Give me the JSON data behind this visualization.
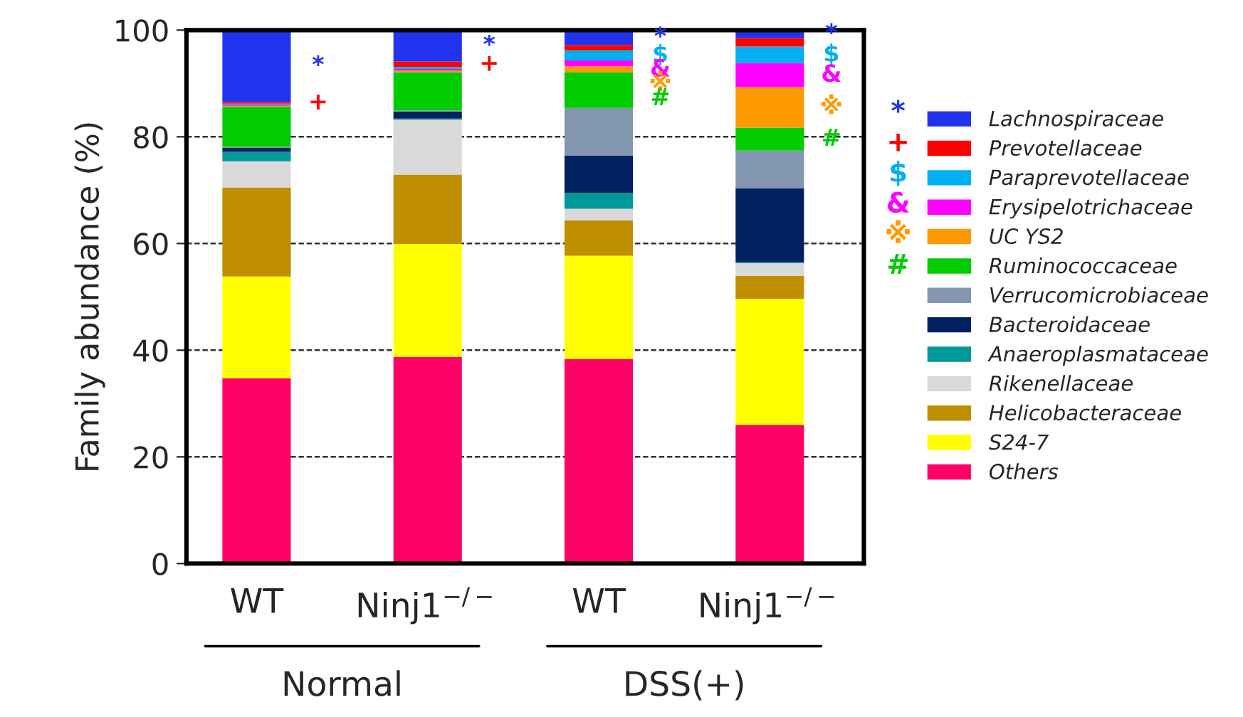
{
  "chart_data": {
    "type": "bar",
    "stacked": true,
    "ylabel": "Family abundance (%)",
    "categories": [
      "WT",
      "Ninj1$^{−/−}$",
      "WT",
      "Ninj1$^{−/−}$"
    ],
    "series": [
      {
        "name": "Others",
        "color": "#ff0066",
        "values": [
          34.7,
          38.7,
          38.3,
          26.0
        ]
      },
      {
        "name": "S24-7",
        "color": "#ffff00",
        "values": [
          19.1,
          21.2,
          19.4,
          23.6
        ]
      },
      {
        "name": "Helicobacteraceae",
        "color": "#bf8f00",
        "values": [
          16.7,
          13.0,
          6.6,
          4.3
        ]
      },
      {
        "name": "Rikenellaceae",
        "color": "#d9d9d9",
        "values": [
          4.9,
          10.3,
          2.2,
          2.4
        ]
      },
      {
        "name": "Anaeroplasmataceae",
        "color": "#009999",
        "values": [
          1.8,
          0.2,
          3.0,
          0.2
        ]
      },
      {
        "name": "Bacteroidaceae",
        "color": "#002060",
        "values": [
          0.7,
          1.3,
          7.0,
          13.8
        ]
      },
      {
        "name": "Verrucomicrobiaceae",
        "color": "#8497b0",
        "values": [
          0.2,
          0.2,
          8.9,
          7.1
        ]
      },
      {
        "name": "Ruminococcaceae",
        "color": "#00cc00",
        "values": [
          7.5,
          7.2,
          6.7,
          4.3
        ]
      },
      {
        "name": "UC YS2",
        "color": "#ff9900",
        "values": [
          0.2,
          0.3,
          1.1,
          7.6
        ]
      },
      {
        "name": "Erysipelotrichaceae",
        "color": "#ff00ff",
        "values": [
          0.2,
          0.3,
          1.1,
          4.5
        ]
      },
      {
        "name": "Paraprevotellaceae",
        "color": "#00b0f0",
        "values": [
          0.2,
          0.4,
          1.9,
          3.1
        ]
      },
      {
        "name": "Prevotellaceae",
        "color": "#ff0000",
        "values": [
          0.3,
          1.0,
          1.0,
          1.6
        ]
      },
      {
        "name": "Lachnospiraceae",
        "color": "#2233ee",
        "values": [
          13.5,
          5.9,
          2.8,
          1.5
        ]
      }
    ],
    "ylim": [
      0,
      100
    ],
    "yticks": [
      0,
      20,
      40,
      60,
      80,
      100
    ],
    "grid": "y",
    "legend": "right",
    "annotations": [
      "Normal",
      "DSS(+)",
      "*",
      "+",
      "$",
      "&",
      "※",
      "#",
      "*",
      "+",
      "*",
      "+",
      "*",
      "$",
      "&",
      "※",
      "#",
      "*",
      "$",
      "&",
      "※",
      "#"
    ]
  }
}
